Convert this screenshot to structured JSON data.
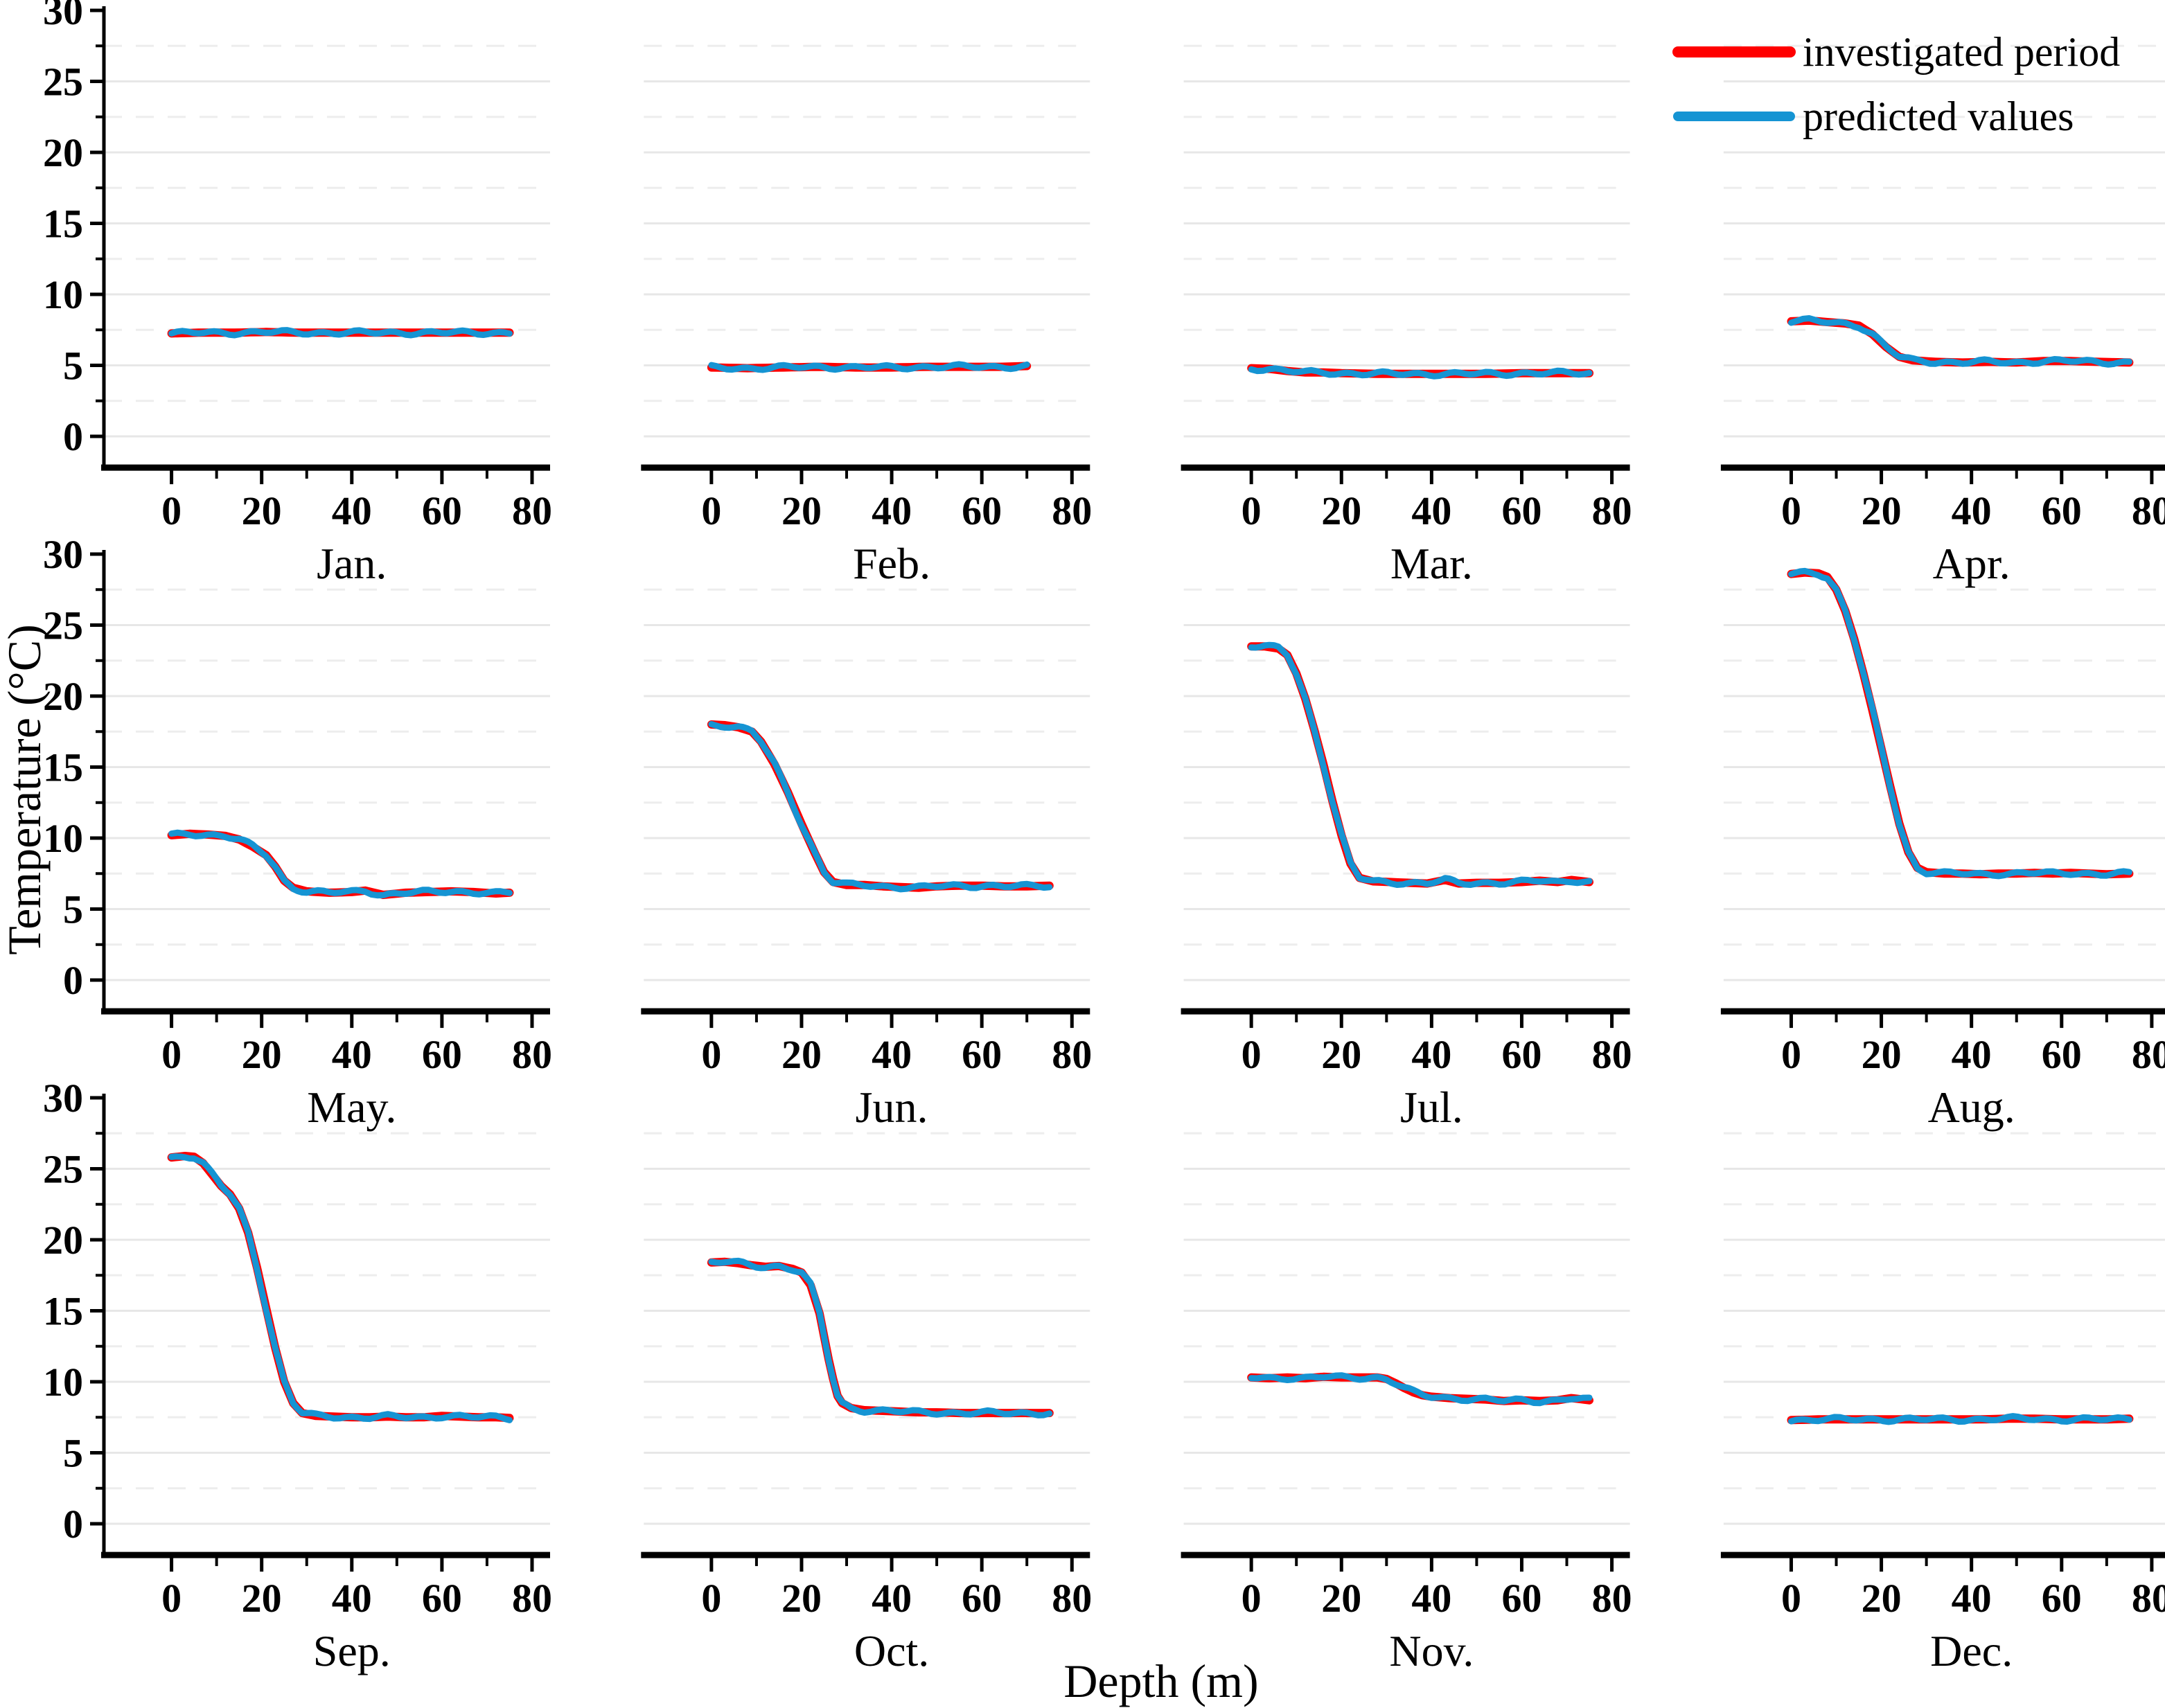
{
  "chart_data": {
    "type": "line",
    "layout": "3x4 small multiples, one panel per month",
    "title": "",
    "xlabel": "Depth (m)",
    "ylabel": "Temperature (°C)",
    "x_ticks": [
      0,
      20,
      40,
      60,
      80
    ],
    "x_minor_ticks": [
      10,
      30,
      50,
      70
    ],
    "y_ticks": [
      0,
      5,
      10,
      15,
      20,
      25,
      30
    ],
    "y_minor_ticks": [
      2.5,
      7.5,
      12.5,
      17.5,
      22.5,
      27.5
    ],
    "xlim": [
      -15,
      84
    ],
    "ylim": [
      -2.2,
      30
    ],
    "grid": "horizontal solid gridlines at major ticks, dashed at minor ticks",
    "legend_position": "top-right",
    "legend": [
      {
        "label": "investigated period",
        "color": "#ff0000"
      },
      {
        "label": "predicted values",
        "color": "#1594d3"
      }
    ],
    "series_note": "predicted values curve overlaps investigated period curve within ±0.15 °C in every panel",
    "panels": [
      {
        "month": "Jan.",
        "profile": [
          [
            0,
            7.25
          ],
          [
            6,
            7.3
          ],
          [
            14,
            7.3
          ],
          [
            21,
            7.35
          ],
          [
            28,
            7.3
          ],
          [
            36,
            7.3
          ],
          [
            44,
            7.3
          ],
          [
            52,
            7.3
          ],
          [
            60,
            7.3
          ],
          [
            68,
            7.3
          ],
          [
            75,
            7.3
          ]
        ]
      },
      {
        "month": "Feb.",
        "profile": [
          [
            0,
            4.85
          ],
          [
            8,
            4.8
          ],
          [
            16,
            4.85
          ],
          [
            24,
            4.9
          ],
          [
            32,
            4.85
          ],
          [
            40,
            4.85
          ],
          [
            48,
            4.9
          ],
          [
            56,
            4.9
          ],
          [
            64,
            4.9
          ],
          [
            70,
            4.95
          ]
        ]
      },
      {
        "month": "Mar.",
        "profile": [
          [
            0,
            4.8
          ],
          [
            4,
            4.75
          ],
          [
            8,
            4.6
          ],
          [
            12,
            4.5
          ],
          [
            16,
            4.5
          ],
          [
            20,
            4.45
          ],
          [
            28,
            4.4
          ],
          [
            36,
            4.4
          ],
          [
            44,
            4.4
          ],
          [
            52,
            4.4
          ],
          [
            60,
            4.45
          ],
          [
            68,
            4.45
          ],
          [
            75,
            4.45
          ]
        ]
      },
      {
        "month": "Apr.",
        "profile": [
          [
            0,
            8.1
          ],
          [
            4,
            8.15
          ],
          [
            8,
            8.05
          ],
          [
            12,
            7.95
          ],
          [
            15,
            7.8
          ],
          [
            18,
            7.2
          ],
          [
            21,
            6.3
          ],
          [
            24,
            5.6
          ],
          [
            27,
            5.35
          ],
          [
            32,
            5.25
          ],
          [
            38,
            5.2
          ],
          [
            44,
            5.25
          ],
          [
            50,
            5.2
          ],
          [
            56,
            5.3
          ],
          [
            62,
            5.3
          ],
          [
            68,
            5.25
          ],
          [
            75,
            5.2
          ]
        ]
      },
      {
        "month": "May.",
        "profile": [
          [
            0,
            10.2
          ],
          [
            4,
            10.3
          ],
          [
            8,
            10.25
          ],
          [
            12,
            10.15
          ],
          [
            15,
            9.9
          ],
          [
            18,
            9.4
          ],
          [
            21,
            8.8
          ],
          [
            23,
            8.0
          ],
          [
            25,
            7.0
          ],
          [
            27,
            6.5
          ],
          [
            30,
            6.25
          ],
          [
            35,
            6.15
          ],
          [
            40,
            6.2
          ],
          [
            43,
            6.3
          ],
          [
            47,
            6.0
          ],
          [
            52,
            6.15
          ],
          [
            57,
            6.2
          ],
          [
            62,
            6.25
          ],
          [
            67,
            6.2
          ],
          [
            72,
            6.1
          ],
          [
            75,
            6.15
          ]
        ]
      },
      {
        "month": "Jun.",
        "profile": [
          [
            0,
            18.0
          ],
          [
            3,
            17.95
          ],
          [
            6,
            17.8
          ],
          [
            9,
            17.5
          ],
          [
            11,
            16.8
          ],
          [
            14,
            15.2
          ],
          [
            17,
            13.2
          ],
          [
            20,
            11.0
          ],
          [
            23,
            8.9
          ],
          [
            25,
            7.6
          ],
          [
            27,
            6.9
          ],
          [
            30,
            6.7
          ],
          [
            34,
            6.7
          ],
          [
            38,
            6.6
          ],
          [
            42,
            6.55
          ],
          [
            46,
            6.5
          ],
          [
            50,
            6.6
          ],
          [
            55,
            6.65
          ],
          [
            60,
            6.65
          ],
          [
            65,
            6.6
          ],
          [
            70,
            6.6
          ],
          [
            75,
            6.65
          ]
        ]
      },
      {
        "month": "Jul.",
        "profile": [
          [
            0,
            23.5
          ],
          [
            3,
            23.5
          ],
          [
            6,
            23.35
          ],
          [
            8,
            22.9
          ],
          [
            10,
            21.6
          ],
          [
            12,
            19.8
          ],
          [
            14,
            17.6
          ],
          [
            16,
            15.2
          ],
          [
            18,
            12.6
          ],
          [
            20,
            10.2
          ],
          [
            22,
            8.2
          ],
          [
            24,
            7.2
          ],
          [
            27,
            6.95
          ],
          [
            31,
            6.9
          ],
          [
            35,
            6.85
          ],
          [
            39,
            6.8
          ],
          [
            43,
            7.05
          ],
          [
            46,
            6.8
          ],
          [
            50,
            6.85
          ],
          [
            55,
            6.85
          ],
          [
            60,
            6.9
          ],
          [
            64,
            7.0
          ],
          [
            68,
            6.9
          ],
          [
            71,
            7.05
          ],
          [
            75,
            6.9
          ]
        ]
      },
      {
        "month": "Aug.",
        "profile": [
          [
            0,
            28.6
          ],
          [
            3,
            28.7
          ],
          [
            6,
            28.65
          ],
          [
            8,
            28.4
          ],
          [
            10,
            27.5
          ],
          [
            12,
            26.0
          ],
          [
            14,
            24.0
          ],
          [
            16,
            21.6
          ],
          [
            18,
            19.0
          ],
          [
            20,
            16.3
          ],
          [
            22,
            13.6
          ],
          [
            24,
            11.0
          ],
          [
            26,
            9.0
          ],
          [
            28,
            7.9
          ],
          [
            30,
            7.6
          ],
          [
            34,
            7.5
          ],
          [
            38,
            7.5
          ],
          [
            42,
            7.45
          ],
          [
            46,
            7.5
          ],
          [
            50,
            7.5
          ],
          [
            54,
            7.55
          ],
          [
            58,
            7.5
          ],
          [
            62,
            7.55
          ],
          [
            66,
            7.5
          ],
          [
            70,
            7.45
          ],
          [
            75,
            7.5
          ]
        ]
      },
      {
        "month": "Sep.",
        "profile": [
          [
            0,
            25.8
          ],
          [
            3,
            25.9
          ],
          [
            5,
            25.85
          ],
          [
            7,
            25.4
          ],
          [
            9,
            24.6
          ],
          [
            11,
            23.8
          ],
          [
            13,
            23.2
          ],
          [
            15,
            22.2
          ],
          [
            17,
            20.5
          ],
          [
            19,
            18.0
          ],
          [
            21,
            15.2
          ],
          [
            23,
            12.4
          ],
          [
            25,
            10.0
          ],
          [
            27,
            8.5
          ],
          [
            29,
            7.8
          ],
          [
            32,
            7.6
          ],
          [
            36,
            7.55
          ],
          [
            40,
            7.5
          ],
          [
            44,
            7.5
          ],
          [
            48,
            7.55
          ],
          [
            52,
            7.5
          ],
          [
            56,
            7.5
          ],
          [
            60,
            7.6
          ],
          [
            64,
            7.55
          ],
          [
            68,
            7.5
          ],
          [
            72,
            7.5
          ],
          [
            75,
            7.45
          ]
        ]
      },
      {
        "month": "Oct.",
        "profile": [
          [
            0,
            18.4
          ],
          [
            3,
            18.45
          ],
          [
            6,
            18.35
          ],
          [
            9,
            18.2
          ],
          [
            12,
            18.1
          ],
          [
            15,
            18.15
          ],
          [
            18,
            17.95
          ],
          [
            20,
            17.7
          ],
          [
            22,
            16.8
          ],
          [
            24,
            14.8
          ],
          [
            25,
            13.2
          ],
          [
            26,
            11.6
          ],
          [
            27,
            10.2
          ],
          [
            28,
            9.0
          ],
          [
            29,
            8.5
          ],
          [
            31,
            8.15
          ],
          [
            34,
            8.0
          ],
          [
            38,
            7.95
          ],
          [
            42,
            7.9
          ],
          [
            46,
            7.85
          ],
          [
            50,
            7.85
          ],
          [
            55,
            7.8
          ],
          [
            60,
            7.8
          ],
          [
            65,
            7.8
          ],
          [
            70,
            7.8
          ],
          [
            75,
            7.8
          ]
        ]
      },
      {
        "month": "Nov.",
        "profile": [
          [
            0,
            10.3
          ],
          [
            4,
            10.25
          ],
          [
            8,
            10.3
          ],
          [
            12,
            10.25
          ],
          [
            16,
            10.35
          ],
          [
            20,
            10.3
          ],
          [
            24,
            10.3
          ],
          [
            28,
            10.3
          ],
          [
            30,
            10.2
          ],
          [
            32,
            9.9
          ],
          [
            34,
            9.55
          ],
          [
            36,
            9.25
          ],
          [
            38,
            9.05
          ],
          [
            40,
            8.95
          ],
          [
            44,
            8.85
          ],
          [
            48,
            8.8
          ],
          [
            52,
            8.75
          ],
          [
            56,
            8.65
          ],
          [
            60,
            8.7
          ],
          [
            64,
            8.65
          ],
          [
            68,
            8.7
          ],
          [
            71,
            8.85
          ],
          [
            75,
            8.7
          ]
        ]
      },
      {
        "month": "Dec.",
        "profile": [
          [
            0,
            7.3
          ],
          [
            6,
            7.35
          ],
          [
            12,
            7.35
          ],
          [
            18,
            7.35
          ],
          [
            24,
            7.35
          ],
          [
            30,
            7.35
          ],
          [
            36,
            7.35
          ],
          [
            42,
            7.35
          ],
          [
            48,
            7.4
          ],
          [
            54,
            7.4
          ],
          [
            60,
            7.35
          ],
          [
            66,
            7.35
          ],
          [
            70,
            7.35
          ],
          [
            75,
            7.4
          ]
        ]
      }
    ]
  }
}
